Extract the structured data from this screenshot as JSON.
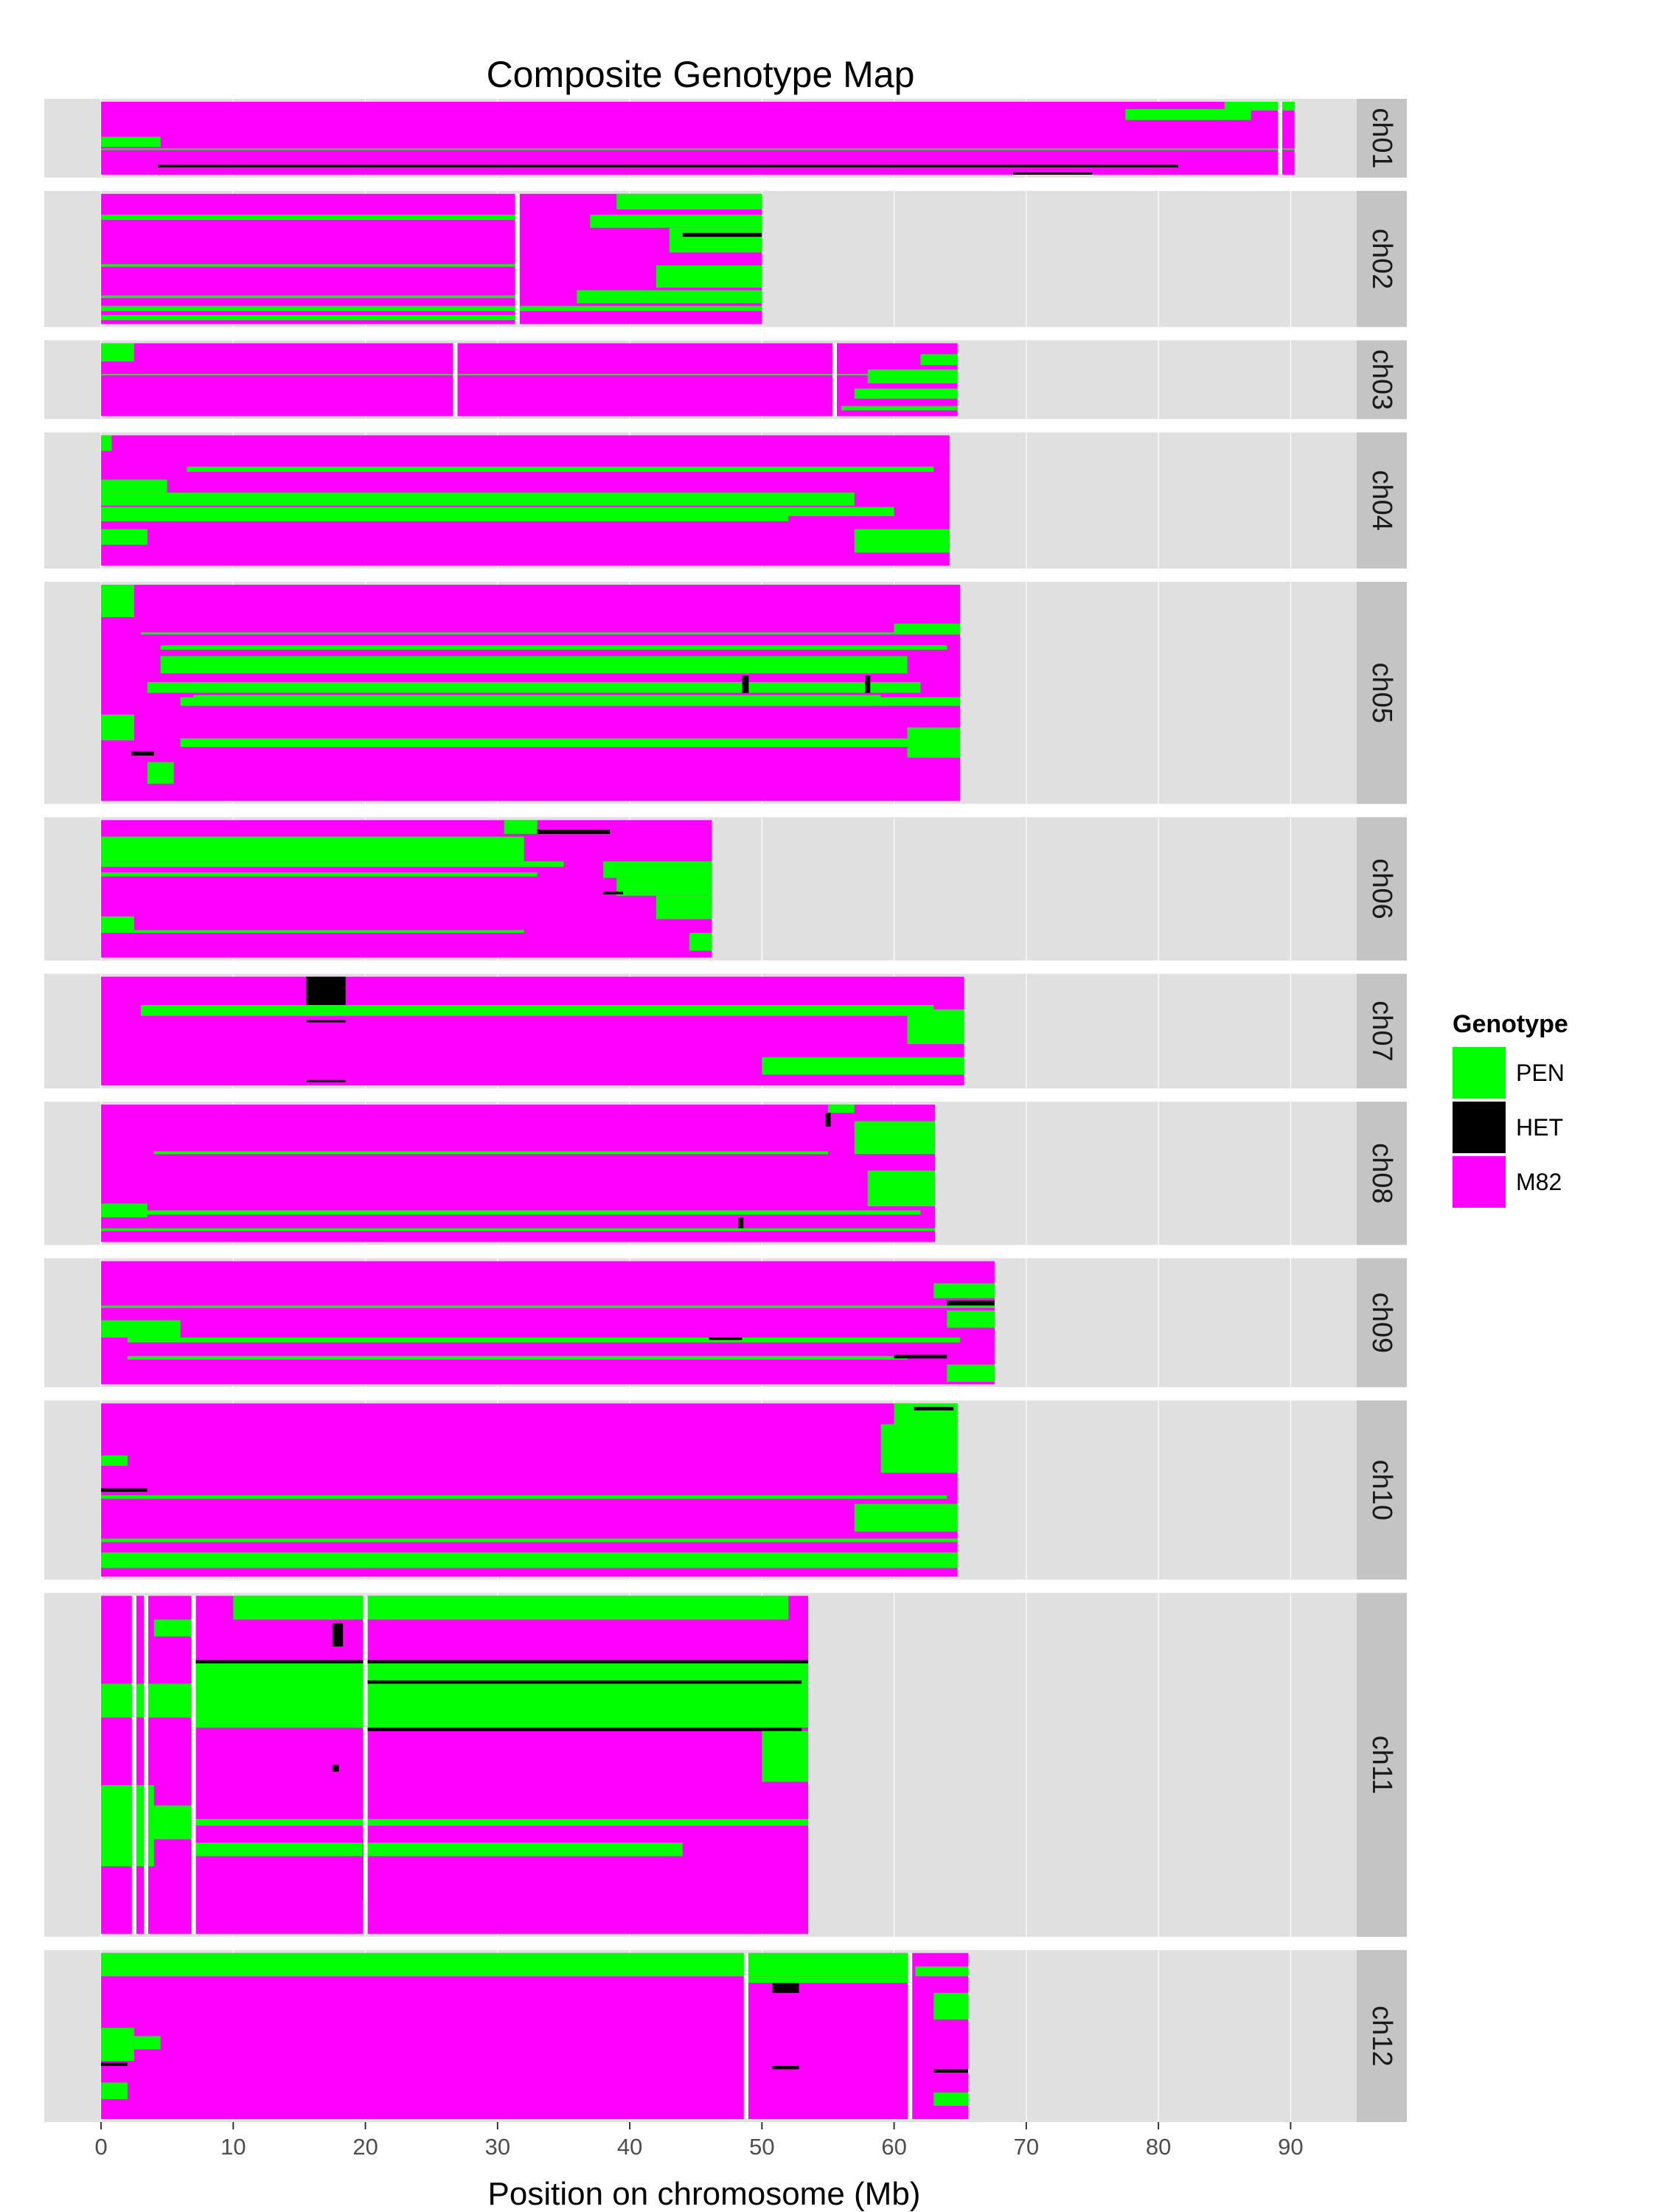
{
  "chart_data": {
    "type": "heatmap",
    "title": "Composite Genotype Map",
    "xlabel": "Position on chromosome (Mb)",
    "ylabel": "",
    "xlim": [
      -4.3,
      95
    ],
    "xticks": [
      0,
      10,
      20,
      30,
      40,
      50,
      60,
      70,
      80,
      90
    ],
    "grid": true,
    "legend": {
      "title": "Genotype",
      "placement": "right",
      "entries": [
        {
          "name": "PEN",
          "color": "#00ff00"
        },
        {
          "name": "HET",
          "color": "#000000"
        },
        {
          "name": "M82",
          "color": "#ff00ff"
        }
      ]
    },
    "colors": {
      "PEN": "#00ff00",
      "HET": "#000000",
      "M82": "#ff00ff",
      "panel": "#e0e0e0",
      "strip": "#c4c4c4"
    },
    "chromosomes": [
      {
        "name": "ch01",
        "length": 90.3,
        "gaps": [
          89.2
        ],
        "weight": 0.55,
        "blocks": [
          {
            "g": "PEN",
            "x0": 85,
            "x1": 90.3,
            "y0": 0.0,
            "y1": 0.12
          },
          {
            "g": "PEN",
            "x0": 77.5,
            "x1": 87,
            "y0": 0.1,
            "y1": 0.25
          },
          {
            "g": "PEN",
            "x0": 0,
            "x1": 4.5,
            "y0": 0.48,
            "y1": 0.62
          },
          {
            "g": "HET",
            "x0": 4.3,
            "x1": 81.5,
            "y0": 0.86,
            "y1": 0.9
          },
          {
            "g": "HET",
            "x0": 69,
            "x1": 75,
            "y0": 0.97,
            "y1": 1.0
          },
          {
            "g": "PEN",
            "x0": 0,
            "x1": 90.3,
            "y0": 0.64,
            "y1": 0.66
          }
        ]
      },
      {
        "name": "ch02",
        "length": 50,
        "gaps": [
          31.5
        ],
        "weight": 0.95,
        "blocks": [
          {
            "g": "PEN",
            "x0": 39,
            "x1": 50,
            "y0": 0.0,
            "y1": 0.12
          },
          {
            "g": "PEN",
            "x0": 0,
            "x1": 31.5,
            "y0": 0.16,
            "y1": 0.2
          },
          {
            "g": "PEN",
            "x0": 37,
            "x1": 50,
            "y0": 0.16,
            "y1": 0.26
          },
          {
            "g": "PEN",
            "x0": 43,
            "x1": 50,
            "y0": 0.26,
            "y1": 0.45
          },
          {
            "g": "HET",
            "x0": 44,
            "x1": 50,
            "y0": 0.3,
            "y1": 0.33
          },
          {
            "g": "PEN",
            "x0": 0,
            "x1": 31.5,
            "y0": 0.54,
            "y1": 0.56
          },
          {
            "g": "PEN",
            "x0": 42,
            "x1": 50,
            "y0": 0.55,
            "y1": 0.72
          },
          {
            "g": "PEN",
            "x0": 0,
            "x1": 31.5,
            "y0": 0.78,
            "y1": 0.8
          },
          {
            "g": "PEN",
            "x0": 36,
            "x1": 50,
            "y0": 0.74,
            "y1": 0.84
          },
          {
            "g": "PEN",
            "x0": 0,
            "x1": 50,
            "y0": 0.86,
            "y1": 0.9
          },
          {
            "g": "PEN",
            "x0": 0,
            "x1": 31.5,
            "y0": 0.93,
            "y1": 0.97
          }
        ]
      },
      {
        "name": "ch03",
        "length": 64.8,
        "gaps": [
          26.8,
          55.5
        ],
        "weight": 0.55,
        "blocks": [
          {
            "g": "PEN",
            "x0": 0,
            "x1": 2.5,
            "y0": 0.0,
            "y1": 0.25
          },
          {
            "g": "PEN",
            "x0": 62,
            "x1": 64.8,
            "y0": 0.15,
            "y1": 0.3
          },
          {
            "g": "PEN",
            "x0": 58,
            "x1": 64.8,
            "y0": 0.36,
            "y1": 0.55
          },
          {
            "g": "PEN",
            "x0": 0,
            "x1": 64.8,
            "y0": 0.42,
            "y1": 0.44
          },
          {
            "g": "PEN",
            "x0": 57,
            "x1": 64.8,
            "y0": 0.62,
            "y1": 0.76
          },
          {
            "g": "PEN",
            "x0": 56,
            "x1": 64.8,
            "y0": 0.86,
            "y1": 0.92
          }
        ]
      },
      {
        "name": "ch04",
        "length": 64.2,
        "gaps": [],
        "weight": 0.95,
        "blocks": [
          {
            "g": "PEN",
            "x0": 0,
            "x1": 0.8,
            "y0": 0.0,
            "y1": 0.12
          },
          {
            "g": "PEN",
            "x0": 6.5,
            "x1": 63,
            "y0": 0.24,
            "y1": 0.28
          },
          {
            "g": "PEN",
            "x0": 0,
            "x1": 5,
            "y0": 0.34,
            "y1": 0.44
          },
          {
            "g": "PEN",
            "x0": 0,
            "x1": 57,
            "y0": 0.44,
            "y1": 0.54
          },
          {
            "g": "PEN",
            "x0": 0,
            "x1": 60,
            "y0": 0.55,
            "y1": 0.62
          },
          {
            "g": "PEN",
            "x0": 0,
            "x1": 52,
            "y0": 0.62,
            "y1": 0.66
          },
          {
            "g": "PEN",
            "x0": 0,
            "x1": 3.5,
            "y0": 0.72,
            "y1": 0.84
          },
          {
            "g": "PEN",
            "x0": 57,
            "x1": 64.2,
            "y0": 0.72,
            "y1": 0.9
          }
        ]
      },
      {
        "name": "ch05",
        "length": 65,
        "gaps": [],
        "weight": 1.55,
        "blocks": [
          {
            "g": "PEN",
            "x0": 0,
            "x1": 2.5,
            "y0": 0.0,
            "y1": 0.15
          },
          {
            "g": "PEN",
            "x0": 60,
            "x1": 65,
            "y0": 0.18,
            "y1": 0.22
          },
          {
            "g": "PEN",
            "x0": 4.5,
            "x1": 64,
            "y0": 0.28,
            "y1": 0.3
          },
          {
            "g": "PEN",
            "x0": 4.5,
            "x1": 61,
            "y0": 0.33,
            "y1": 0.41
          },
          {
            "g": "PEN",
            "x0": 3.5,
            "x1": 62,
            "y0": 0.45,
            "y1": 0.5
          },
          {
            "g": "PEN",
            "x0": 7,
            "x1": 59,
            "y0": 0.51,
            "y1": 0.55
          },
          {
            "g": "HET",
            "x0": 48.5,
            "x1": 49,
            "y0": 0.42,
            "y1": 0.5
          },
          {
            "g": "HET",
            "x0": 57.8,
            "x1": 58.2,
            "y0": 0.42,
            "y1": 0.5
          },
          {
            "g": "PEN",
            "x0": 6,
            "x1": 65,
            "y0": 0.52,
            "y1": 0.56
          },
          {
            "g": "PEN",
            "x0": 0,
            "x1": 2.5,
            "y0": 0.6,
            "y1": 0.72
          },
          {
            "g": "PEN",
            "x0": 6,
            "x1": 62,
            "y0": 0.71,
            "y1": 0.75
          },
          {
            "g": "PEN",
            "x0": 61,
            "x1": 65,
            "y0": 0.66,
            "y1": 0.8
          },
          {
            "g": "HET",
            "x0": 2.3,
            "x1": 4,
            "y0": 0.77,
            "y1": 0.79
          },
          {
            "g": "PEN",
            "x0": 3.5,
            "x1": 5.5,
            "y0": 0.82,
            "y1": 0.92
          },
          {
            "g": "PEN",
            "x0": 3,
            "x1": 65,
            "y0": 0.22,
            "y1": 0.23
          }
        ]
      },
      {
        "name": "ch06",
        "length": 46.2,
        "gaps": [],
        "weight": 1.0,
        "blocks": [
          {
            "g": "PEN",
            "x0": 30.5,
            "x1": 33,
            "y0": 0.0,
            "y1": 0.1
          },
          {
            "g": "HET",
            "x0": 33,
            "x1": 38.5,
            "y0": 0.07,
            "y1": 0.1
          },
          {
            "g": "PEN",
            "x0": 0,
            "x1": 32,
            "y0": 0.12,
            "y1": 0.3
          },
          {
            "g": "PEN",
            "x0": 0,
            "x1": 35,
            "y0": 0.3,
            "y1": 0.34
          },
          {
            "g": "PEN",
            "x0": 0,
            "x1": 33,
            "y0": 0.38,
            "y1": 0.41
          },
          {
            "g": "PEN",
            "x0": 38,
            "x1": 46.2,
            "y0": 0.3,
            "y1": 0.42
          },
          {
            "g": "PEN",
            "x0": 39,
            "x1": 46.2,
            "y0": 0.42,
            "y1": 0.55
          },
          {
            "g": "HET",
            "x0": 38,
            "x1": 39.5,
            "y0": 0.52,
            "y1": 0.54
          },
          {
            "g": "PEN",
            "x0": 42,
            "x1": 46.2,
            "y0": 0.55,
            "y1": 0.72
          },
          {
            "g": "PEN",
            "x0": 0,
            "x1": 2.5,
            "y0": 0.7,
            "y1": 0.8
          },
          {
            "g": "PEN",
            "x0": 0,
            "x1": 32,
            "y0": 0.8,
            "y1": 0.82
          },
          {
            "g": "PEN",
            "x0": 44.5,
            "x1": 46.2,
            "y0": 0.82,
            "y1": 0.95
          }
        ]
      },
      {
        "name": "ch07",
        "length": 65.3,
        "gaps": [],
        "weight": 0.8,
        "blocks": [
          {
            "g": "HET",
            "x0": 15.5,
            "x1": 18.5,
            "y0": 0.0,
            "y1": 0.26
          },
          {
            "g": "PEN",
            "x0": 3,
            "x1": 63,
            "y0": 0.26,
            "y1": 0.36
          },
          {
            "g": "HET",
            "x0": 15.5,
            "x1": 18.5,
            "y0": 0.4,
            "y1": 0.42
          },
          {
            "g": "PEN",
            "x0": 61,
            "x1": 65.3,
            "y0": 0.3,
            "y1": 0.62
          },
          {
            "g": "PEN",
            "x0": 50,
            "x1": 65.3,
            "y0": 0.74,
            "y1": 0.9
          },
          {
            "g": "HET",
            "x0": 15.5,
            "x1": 18.5,
            "y0": 0.95,
            "y1": 0.97
          }
        ]
      },
      {
        "name": "ch08",
        "length": 63.1,
        "gaps": [],
        "weight": 1.0,
        "blocks": [
          {
            "g": "PEN",
            "x0": 55,
            "x1": 57,
            "y0": 0.0,
            "y1": 0.06
          },
          {
            "g": "HET",
            "x0": 54.8,
            "x1": 55.2,
            "y0": 0.06,
            "y1": 0.16
          },
          {
            "g": "PEN",
            "x0": 57,
            "x1": 63.1,
            "y0": 0.12,
            "y1": 0.36
          },
          {
            "g": "PEN",
            "x0": 4,
            "x1": 55,
            "y0": 0.34,
            "y1": 0.36
          },
          {
            "g": "PEN",
            "x0": 58,
            "x1": 63.1,
            "y0": 0.48,
            "y1": 0.74
          },
          {
            "g": "PEN",
            "x0": 0,
            "x1": 3.5,
            "y0": 0.72,
            "y1": 0.82
          },
          {
            "g": "PEN",
            "x0": 3,
            "x1": 62,
            "y0": 0.77,
            "y1": 0.8
          },
          {
            "g": "HET",
            "x0": 48.2,
            "x1": 48.6,
            "y0": 0.82,
            "y1": 0.9
          },
          {
            "g": "PEN",
            "x0": 0,
            "x1": 63.1,
            "y0": 0.9,
            "y1": 0.92
          }
        ]
      },
      {
        "name": "ch09",
        "length": 67.6,
        "gaps": [],
        "weight": 0.9,
        "blocks": [
          {
            "g": "PEN",
            "x0": 63,
            "x1": 67.6,
            "y0": 0.18,
            "y1": 0.3
          },
          {
            "g": "HET",
            "x0": 64,
            "x1": 67.6,
            "y0": 0.32,
            "y1": 0.36
          },
          {
            "g": "PEN",
            "x0": 64,
            "x1": 67.6,
            "y0": 0.4,
            "y1": 0.54
          },
          {
            "g": "PEN",
            "x0": 0,
            "x1": 6,
            "y0": 0.48,
            "y1": 0.62
          },
          {
            "g": "PEN",
            "x0": 2,
            "x1": 65,
            "y0": 0.62,
            "y1": 0.66
          },
          {
            "g": "HET",
            "x0": 46,
            "x1": 48.5,
            "y0": 0.62,
            "y1": 0.64
          },
          {
            "g": "PEN",
            "x0": 2,
            "x1": 61,
            "y0": 0.77,
            "y1": 0.8
          },
          {
            "g": "HET",
            "x0": 60,
            "x1": 64,
            "y0": 0.76,
            "y1": 0.79
          },
          {
            "g": "PEN",
            "x0": 64,
            "x1": 67.6,
            "y0": 0.84,
            "y1": 0.98
          },
          {
            "g": "PEN",
            "x0": 0,
            "x1": 67.6,
            "y0": 0.36,
            "y1": 0.38
          }
        ]
      },
      {
        "name": "ch10",
        "length": 64.8,
        "gaps": [],
        "weight": 1.25,
        "blocks": [
          {
            "g": "PEN",
            "x0": 60,
            "x1": 64.8,
            "y0": 0.0,
            "y1": 0.12
          },
          {
            "g": "HET",
            "x0": 61.5,
            "x1": 64.5,
            "y0": 0.02,
            "y1": 0.04
          },
          {
            "g": "PEN",
            "x0": 59,
            "x1": 64.8,
            "y0": 0.12,
            "y1": 0.4
          },
          {
            "g": "PEN",
            "x0": 0,
            "x1": 2,
            "y0": 0.3,
            "y1": 0.36
          },
          {
            "g": "HET",
            "x0": 0,
            "x1": 3.5,
            "y0": 0.49,
            "y1": 0.51
          },
          {
            "g": "PEN",
            "x0": 0,
            "x1": 64,
            "y0": 0.53,
            "y1": 0.55
          },
          {
            "g": "PEN",
            "x0": 57,
            "x1": 64.8,
            "y0": 0.58,
            "y1": 0.74
          },
          {
            "g": "PEN",
            "x0": 0,
            "x1": 64.8,
            "y0": 0.78,
            "y1": 0.8
          },
          {
            "g": "PEN",
            "x0": 0,
            "x1": 64.8,
            "y0": 0.86,
            "y1": 0.95
          }
        ]
      },
      {
        "name": "ch11",
        "length": 53.5,
        "gaps": [
          2.5,
          3.4,
          7.0,
          20.0
        ],
        "weight": 2.4,
        "blocks": [
          {
            "g": "PEN",
            "x0": 10,
            "x1": 52,
            "y0": 0.0,
            "y1": 0.07
          },
          {
            "g": "PEN",
            "x0": 4,
            "x1": 7,
            "y0": 0.07,
            "y1": 0.12
          },
          {
            "g": "HET",
            "x0": 17.5,
            "x1": 18.3,
            "y0": 0.08,
            "y1": 0.15
          },
          {
            "g": "PEN",
            "x0": 7,
            "x1": 53.5,
            "y0": 0.19,
            "y1": 0.39
          },
          {
            "g": "HET",
            "x0": 7,
            "x1": 53.5,
            "y0": 0.19,
            "y1": 0.2
          },
          {
            "g": "HET",
            "x0": 20,
            "x1": 53,
            "y0": 0.25,
            "y1": 0.26
          },
          {
            "g": "PEN",
            "x0": 0,
            "x1": 7,
            "y0": 0.26,
            "y1": 0.36
          },
          {
            "g": "HET",
            "x0": 20,
            "x1": 53,
            "y0": 0.39,
            "y1": 0.4
          },
          {
            "g": "PEN",
            "x0": 50,
            "x1": 53.5,
            "y0": 0.4,
            "y1": 0.55
          },
          {
            "g": "HET",
            "x0": 17.5,
            "x1": 18,
            "y0": 0.5,
            "y1": 0.52
          },
          {
            "g": "PEN",
            "x0": 0,
            "x1": 4,
            "y0": 0.56,
            "y1": 0.8
          },
          {
            "g": "PEN",
            "x0": 3.5,
            "x1": 7,
            "y0": 0.62,
            "y1": 0.72
          },
          {
            "g": "PEN",
            "x0": 7,
            "x1": 44,
            "y0": 0.73,
            "y1": 0.77
          },
          {
            "g": "HET",
            "x0": 19.8,
            "x1": 20.1,
            "y0": 0.72,
            "y1": 0.9
          },
          {
            "g": "PEN",
            "x0": 7,
            "x1": 53.5,
            "y0": 0.66,
            "y1": 0.68
          }
        ]
      },
      {
        "name": "ch12",
        "length": 65.6,
        "gaps": [
          48.8,
          61.2
        ],
        "weight": 1.2,
        "blocks": [
          {
            "g": "PEN",
            "x0": 0,
            "x1": 61.2,
            "y0": 0.0,
            "y1": 0.14
          },
          {
            "g": "PEN",
            "x0": 48.8,
            "x1": 61.2,
            "y0": 0.14,
            "y1": 0.18
          },
          {
            "g": "HET",
            "x0": 50.8,
            "x1": 52.8,
            "y0": 0.18,
            "y1": 0.24
          },
          {
            "g": "PEN",
            "x0": 61.6,
            "x1": 65.6,
            "y0": 0.08,
            "y1": 0.14
          },
          {
            "g": "PEN",
            "x0": 63,
            "x1": 65.6,
            "y0": 0.24,
            "y1": 0.4
          },
          {
            "g": "PEN",
            "x0": 0,
            "x1": 2.5,
            "y0": 0.45,
            "y1": 0.65
          },
          {
            "g": "PEN",
            "x0": 2.5,
            "x1": 4.5,
            "y0": 0.5,
            "y1": 0.58
          },
          {
            "g": "HET",
            "x0": 0,
            "x1": 2,
            "y0": 0.66,
            "y1": 0.68
          },
          {
            "g": "HET",
            "x0": 50.8,
            "x1": 52.8,
            "y0": 0.68,
            "y1": 0.7
          },
          {
            "g": "HET",
            "x0": 63,
            "x1": 65.6,
            "y0": 0.7,
            "y1": 0.72
          },
          {
            "g": "PEN",
            "x0": 0,
            "x1": 2,
            "y0": 0.78,
            "y1": 0.88
          },
          {
            "g": "PEN",
            "x0": 63,
            "x1": 65.6,
            "y0": 0.84,
            "y1": 0.92
          }
        ]
      }
    ]
  }
}
